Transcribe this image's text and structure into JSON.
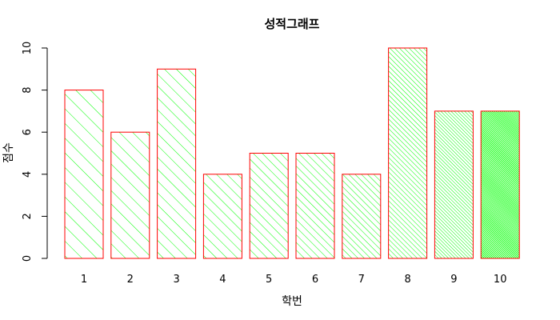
{
  "chart_data": {
    "type": "bar",
    "title": "성적그래프",
    "xlabel": "학번",
    "ylabel": "점수",
    "categories": [
      "1",
      "2",
      "3",
      "4",
      "5",
      "6",
      "7",
      "8",
      "9",
      "10"
    ],
    "values": [
      8,
      6,
      9,
      4,
      5,
      5,
      4,
      10,
      7,
      7
    ],
    "ylim": [
      0,
      10
    ],
    "yticks": [
      "0",
      "2",
      "4",
      "6",
      "8",
      "10"
    ],
    "grid": false,
    "bar_border_color": "#ff0000",
    "bar_fill_color": "#00ff00"
  }
}
